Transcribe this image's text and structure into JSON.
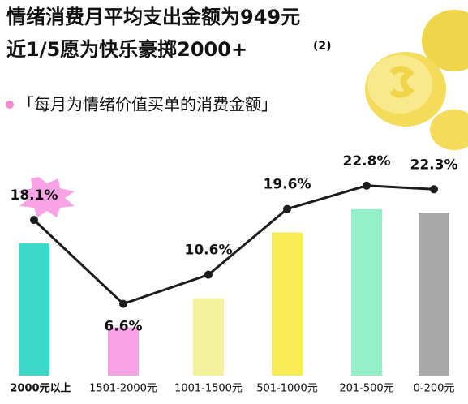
{
  "chart_data": {
    "type": "bar",
    "title": [
      "情绪消费月平均支出金额为949元",
      "近1/5愿为快乐豪掷2000+"
    ],
    "badge": "(2)",
    "subtitle": "「每月为情绪价值买单的消费金额」",
    "categories": [
      "2000元以上",
      "1501-2000元",
      "1001-1500元",
      "501-1000元",
      "201-500元",
      "0-200元"
    ],
    "values": [
      18.1,
      6.6,
      10.6,
      19.6,
      22.8,
      22.3
    ],
    "value_labels": [
      "18.1%",
      "6.6%",
      "10.6%",
      "19.6%",
      "22.8%",
      "22.3%"
    ],
    "colors": [
      "#3ed8c8",
      "#f7a3e4",
      "#f3f29a",
      "#f7ec55",
      "#93f0c8",
      "#a9a9a9"
    ],
    "line_color": "#1c1c1c"
  }
}
